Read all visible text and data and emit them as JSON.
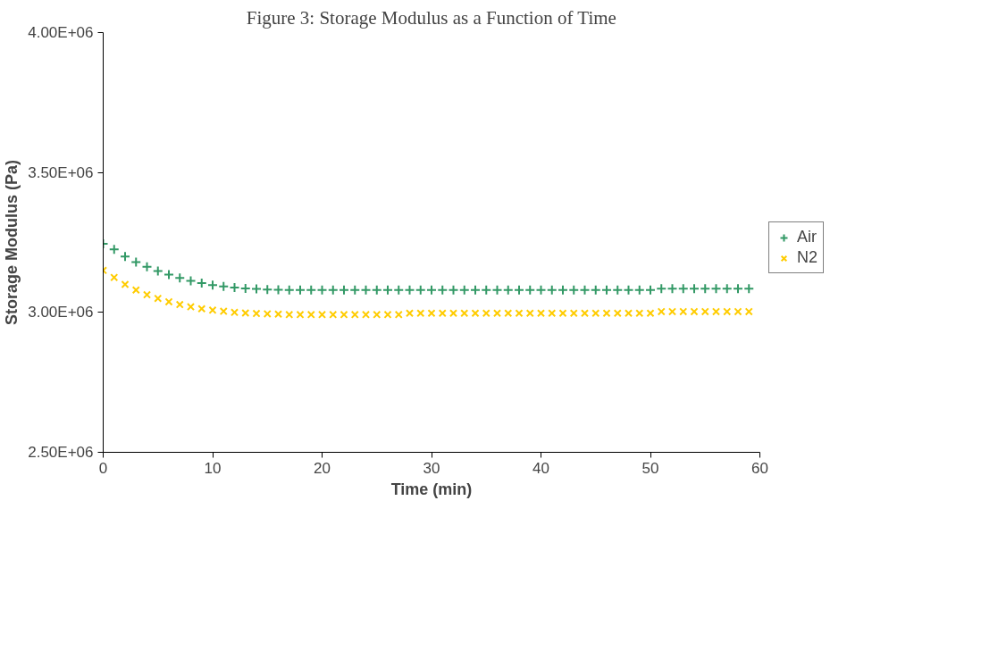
{
  "chart_data": {
    "type": "scatter",
    "title": "Figure 3: Storage Modulus as a Function of Time",
    "xlabel": "Time (min)",
    "ylabel": "Storage Modulus (Pa)",
    "x": [
      0,
      1,
      2,
      3,
      4,
      5,
      6,
      7,
      8,
      9,
      10,
      11,
      12,
      13,
      14,
      15,
      16,
      17,
      18,
      19,
      20,
      21,
      22,
      23,
      24,
      25,
      26,
      27,
      28,
      29,
      30,
      31,
      32,
      33,
      34,
      35,
      36,
      37,
      38,
      39,
      40,
      41,
      42,
      43,
      44,
      45,
      46,
      47,
      48,
      49,
      50,
      51,
      52,
      53,
      54,
      55,
      56,
      57,
      58,
      59
    ],
    "series": [
      {
        "name": "Air",
        "color": "#339966",
        "marker": "cross",
        "values": [
          3245000,
          3225000,
          3200000,
          3180000,
          3163000,
          3148000,
          3135000,
          3123000,
          3113000,
          3105000,
          3098000,
          3093000,
          3089000,
          3086000,
          3084000,
          3082000,
          3081000,
          3080000,
          3080000,
          3080000,
          3080000,
          3080000,
          3080000,
          3080000,
          3080000,
          3080000,
          3080000,
          3080000,
          3080000,
          3080000,
          3080000,
          3080000,
          3080000,
          3080000,
          3080000,
          3080000,
          3080000,
          3080000,
          3080000,
          3080000,
          3080000,
          3080000,
          3080000,
          3080000,
          3080000,
          3080000,
          3080000,
          3080000,
          3080000,
          3080000,
          3080000,
          3085000,
          3085000,
          3085000,
          3085000,
          3085000,
          3085000,
          3085000,
          3085000,
          3085000
        ]
      },
      {
        "name": "N2",
        "color": "#ffcc00",
        "marker": "x",
        "values": [
          3150000,
          3125000,
          3100000,
          3080000,
          3063000,
          3050000,
          3038000,
          3028000,
          3020000,
          3013000,
          3008000,
          3004000,
          3000000,
          2998000,
          2996000,
          2995000,
          2994000,
          2992000,
          2992000,
          2992000,
          2992000,
          2992000,
          2992000,
          2992000,
          2992000,
          2992000,
          2992000,
          2992000,
          2997000,
          2997000,
          2997000,
          2997000,
          2997000,
          2997000,
          2997000,
          2997000,
          2997000,
          2997000,
          2997000,
          2997000,
          2997000,
          2997000,
          2997000,
          2997000,
          2997000,
          2997000,
          2997000,
          2997000,
          2997000,
          2997000,
          2997000,
          3003000,
          3003000,
          3003000,
          3003000,
          3003000,
          3003000,
          3003000,
          3003000,
          3003000
        ]
      }
    ],
    "xlim": [
      0,
      60
    ],
    "xticks": [
      0,
      10,
      20,
      30,
      40,
      50,
      60
    ],
    "ylim": [
      2500000,
      4000000
    ],
    "yticks": [
      {
        "value": 2500000,
        "label": "2.50E+06"
      },
      {
        "value": 3000000,
        "label": "3.00E+06"
      },
      {
        "value": 3500000,
        "label": "3.50E+06"
      },
      {
        "value": 4000000,
        "label": "4.00E+06"
      }
    ],
    "grid": false,
    "legend": "right"
  }
}
